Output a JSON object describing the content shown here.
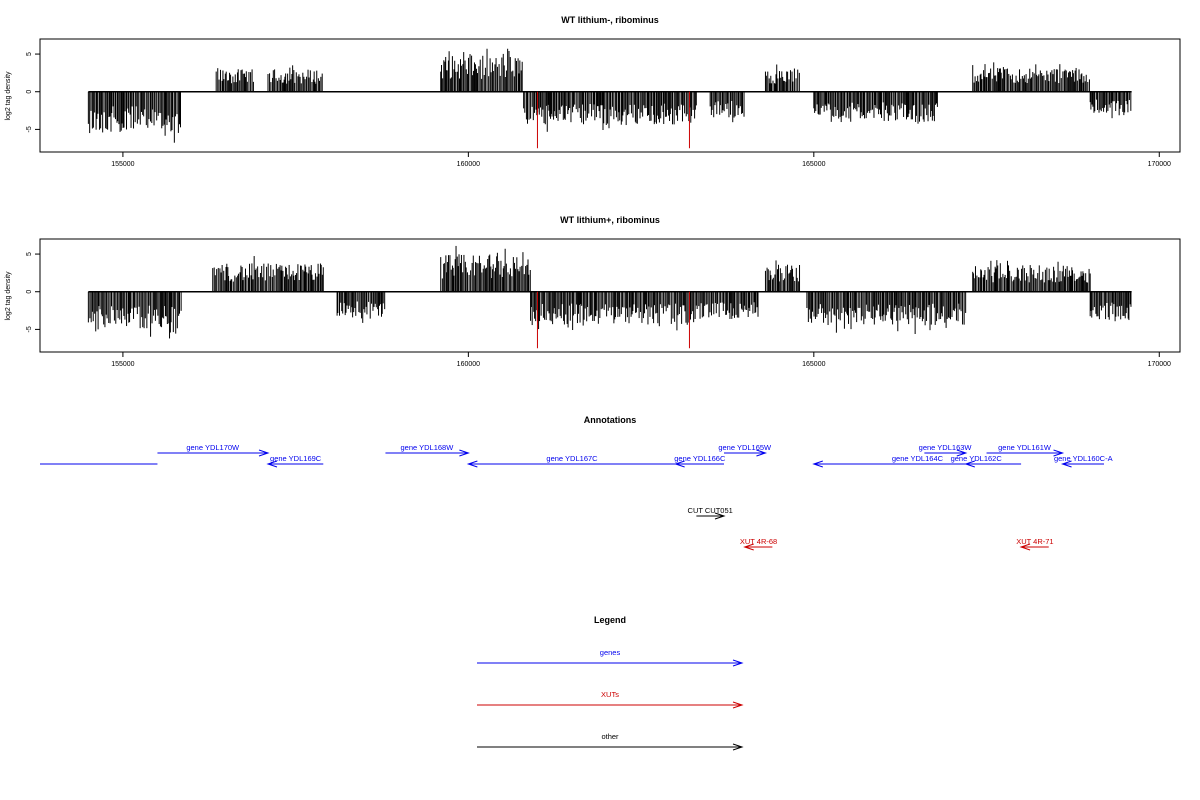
{
  "chart_data": [
    {
      "type": "bar",
      "title": "WT lithium-, ribominus",
      "ylabel": "log2 tag density",
      "xlim": [
        153800,
        170300
      ],
      "ylim": [
        -8,
        7
      ],
      "xticks": [
        155000,
        160000,
        165000,
        170000
      ],
      "yticks": [
        -5,
        0,
        5
      ],
      "grid": false,
      "segments": [
        {
          "start": 154500,
          "end": 155850,
          "sign": -1,
          "amp": 5.5
        },
        {
          "start": 156350,
          "end": 156900,
          "sign": 1,
          "amp": 3.0
        },
        {
          "start": 157100,
          "end": 157900,
          "sign": 1,
          "amp": 3.0
        },
        {
          "start": 159600,
          "end": 160800,
          "sign": 1,
          "amp": 4.8
        },
        {
          "start": 160800,
          "end": 163300,
          "sign": -1,
          "amp": 4.5
        },
        {
          "start": 163500,
          "end": 164000,
          "sign": -1,
          "amp": 3.5
        },
        {
          "start": 164300,
          "end": 164800,
          "sign": 1,
          "amp": 3.0
        },
        {
          "start": 165000,
          "end": 166800,
          "sign": -1,
          "amp": 4.0
        },
        {
          "start": 167300,
          "end": 169000,
          "sign": 1,
          "amp": 3.2
        },
        {
          "start": 169000,
          "end": 169600,
          "sign": -1,
          "amp": 3.0
        }
      ],
      "highlights": [
        {
          "x": 161000,
          "value": -7.5,
          "color": "#cc0000"
        },
        {
          "x": 163200,
          "value": -7.5,
          "color": "#cc0000"
        }
      ],
      "baseline": [
        154500,
        169600
      ]
    },
    {
      "type": "bar",
      "title": "WT lithium+, ribominus",
      "ylabel": "log2 tag density",
      "xlim": [
        153800,
        170300
      ],
      "ylim": [
        -8,
        7
      ],
      "xticks": [
        155000,
        160000,
        165000,
        170000
      ],
      "yticks": [
        -5,
        0,
        5
      ],
      "grid": false,
      "segments": [
        {
          "start": 154500,
          "end": 155850,
          "sign": -1,
          "amp": 5.0
        },
        {
          "start": 156300,
          "end": 157900,
          "sign": 1,
          "amp": 3.8
        },
        {
          "start": 158100,
          "end": 158800,
          "sign": -1,
          "amp": 3.5
        },
        {
          "start": 159600,
          "end": 160900,
          "sign": 1,
          "amp": 5.0
        },
        {
          "start": 160900,
          "end": 163300,
          "sign": -1,
          "amp": 4.5
        },
        {
          "start": 163300,
          "end": 164200,
          "sign": -1,
          "amp": 3.5
        },
        {
          "start": 164300,
          "end": 164800,
          "sign": 1,
          "amp": 3.6
        },
        {
          "start": 164900,
          "end": 167200,
          "sign": -1,
          "amp": 4.5
        },
        {
          "start": 167300,
          "end": 169000,
          "sign": 1,
          "amp": 3.5
        },
        {
          "start": 169000,
          "end": 169600,
          "sign": -1,
          "amp": 4.0
        }
      ],
      "highlights": [
        {
          "x": 161000,
          "value": -7.5,
          "color": "#cc0000"
        },
        {
          "x": 163200,
          "value": -7.5,
          "color": "#cc0000"
        }
      ],
      "baseline": [
        154500,
        169600
      ]
    }
  ],
  "annotations": {
    "title": "Annotations",
    "xlim": [
      153800,
      170300
    ],
    "features": [
      {
        "label": "",
        "start": 153800,
        "end": 155500,
        "strand": "-",
        "row": 1,
        "color": "#0000ee"
      },
      {
        "label": "gene YDL170W",
        "start": 155500,
        "end": 157100,
        "strand": "+",
        "row": 0,
        "color": "#0000ee"
      },
      {
        "label": "gene YDL169C",
        "start": 157100,
        "end": 157900,
        "strand": "-",
        "row": 1,
        "color": "#0000ee"
      },
      {
        "label": "gene YDL168W",
        "start": 158800,
        "end": 160000,
        "strand": "+",
        "row": 0,
        "color": "#0000ee"
      },
      {
        "label": "gene YDL167C",
        "start": 160000,
        "end": 163000,
        "strand": "-",
        "row": 1,
        "color": "#0000ee"
      },
      {
        "label": "gene YDL166C",
        "start": 163000,
        "end": 163700,
        "strand": "-",
        "row": 1,
        "color": "#0000ee"
      },
      {
        "label": "gene YDL165W",
        "start": 163700,
        "end": 164300,
        "strand": "+",
        "row": 0,
        "color": "#0000ee"
      },
      {
        "label": "gene YDL164C",
        "start": 165000,
        "end": 168000,
        "strand": "-",
        "row": 1,
        "color": "#0000ee"
      },
      {
        "label": "gene YDL163W",
        "start": 166600,
        "end": 167200,
        "strand": "+",
        "row": 0,
        "color": "#0000ee"
      },
      {
        "label": "gene YDL162C",
        "start": 167200,
        "end": 167500,
        "strand": "-",
        "row": 1,
        "color": "#0000ee"
      },
      {
        "label": "gene YDL161W",
        "start": 167500,
        "end": 168600,
        "strand": "+",
        "row": 0,
        "color": "#0000ee"
      },
      {
        "label": "gene YDL160C-A",
        "start": 168600,
        "end": 169200,
        "strand": "-",
        "row": 1,
        "color": "#0000ee"
      },
      {
        "label": "CUT CUT051",
        "start": 163300,
        "end": 163700,
        "strand": "+",
        "row": 2,
        "color": "#000000"
      },
      {
        "label": "XUT 4R-68",
        "start": 164000,
        "end": 164400,
        "strand": "-",
        "row": 3,
        "color": "#cc0000"
      },
      {
        "label": "XUT 4R-71",
        "start": 168000,
        "end": 168400,
        "strand": "-",
        "row": 3,
        "color": "#cc0000"
      }
    ]
  },
  "legend": {
    "title": "Legend",
    "items": [
      {
        "label": "genes",
        "color": "#0000ee"
      },
      {
        "label": "XUTs",
        "color": "#cc0000"
      },
      {
        "label": "other",
        "color": "#000000"
      }
    ]
  }
}
